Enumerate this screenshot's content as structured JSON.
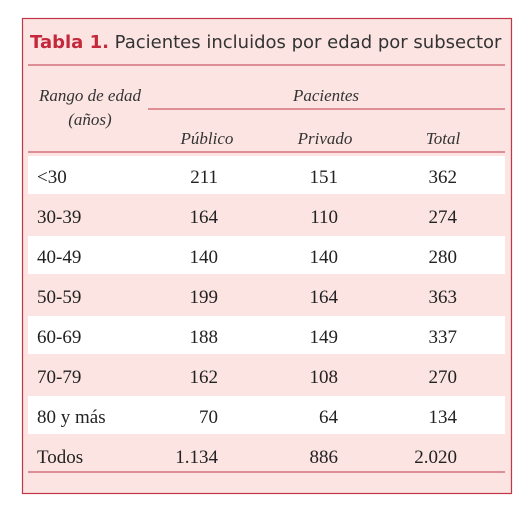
{
  "header": {
    "label": "Tabla 1.",
    "title": "Pacientes incluidos por edad por subsector"
  },
  "table": {
    "row_header": [
      "Rango de edad",
      "(años)"
    ],
    "group_header": "Pacientes",
    "columns": [
      "Público",
      "Privado",
      "Total"
    ],
    "rows": [
      [
        "<30",
        "211",
        "151",
        "362"
      ],
      [
        "30-39",
        "164",
        "110",
        "274"
      ],
      [
        "40-49",
        "140",
        "140",
        "280"
      ],
      [
        "50-59",
        "199",
        "164",
        "363"
      ],
      [
        "60-69",
        "188",
        "149",
        "337"
      ],
      [
        "70-79",
        "162",
        "108",
        "270"
      ],
      [
        "80 y más",
        "70",
        "64",
        "134"
      ],
      [
        "Todos",
        "1.134",
        "886",
        "2.020"
      ]
    ]
  }
}
